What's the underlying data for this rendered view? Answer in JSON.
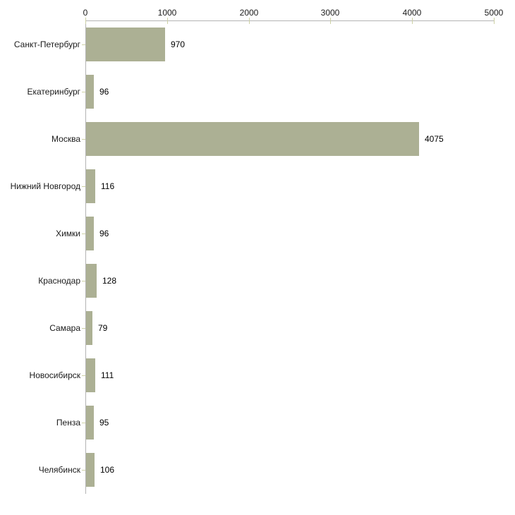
{
  "chart_data": {
    "type": "bar",
    "orientation": "horizontal",
    "title": "",
    "xlabel": "",
    "ylabel": "",
    "categories": [
      "Санкт-Петербург",
      "Екатеринбург",
      "Москва",
      "Нижний Новгород",
      "Химки",
      "Краснодар",
      "Самара",
      "Новосибирск",
      "Пенза",
      "Челябинск"
    ],
    "values": [
      970,
      96,
      4075,
      116,
      96,
      128,
      79,
      111,
      95,
      106
    ],
    "value_labels": [
      "970",
      "96",
      "4075",
      "116",
      "96",
      "128",
      "79",
      "111",
      "95",
      "106"
    ],
    "xlim": [
      0,
      5000
    ],
    "xticks": [
      0,
      1000,
      2000,
      3000,
      4000,
      5000
    ],
    "xtick_labels": [
      "0",
      "1000",
      "2000",
      "3000",
      "4000",
      "5000"
    ],
    "axis_position": "top",
    "grid": false,
    "legend": false,
    "colors": {
      "bar_fill": "#acb094",
      "axis_line": "#b4b4b4",
      "tick_mark": "#cdd1a5",
      "label_text": "#1a1a1a",
      "background": "#ffffff"
    }
  }
}
